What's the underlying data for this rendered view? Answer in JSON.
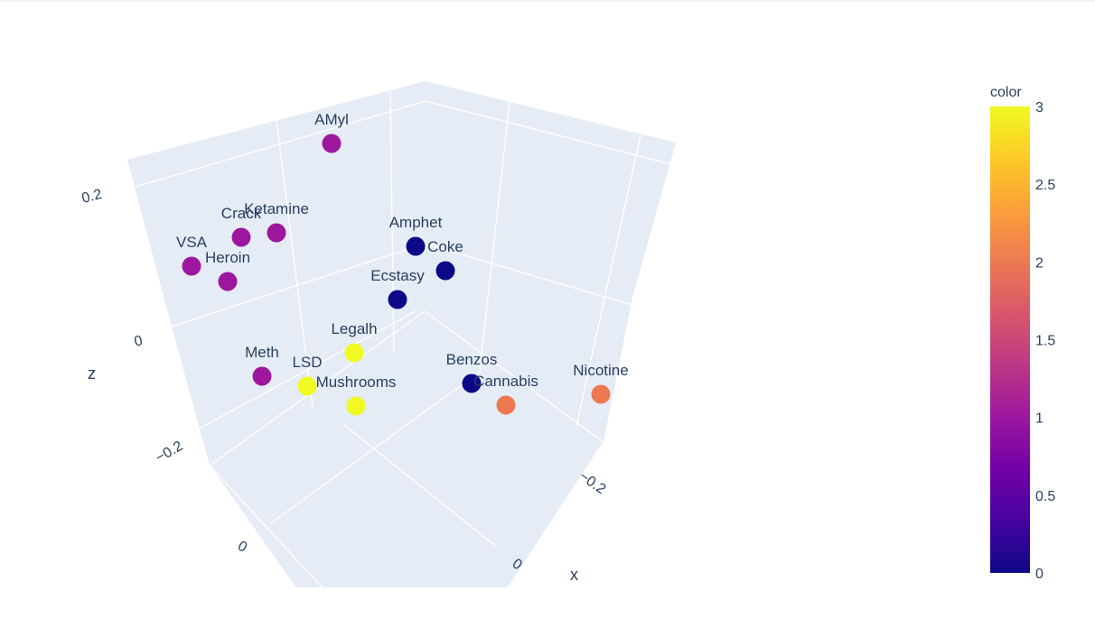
{
  "chart_data": {
    "type": "scatter3d",
    "points": [
      {
        "label": "AMyl",
        "color_value": 1
      },
      {
        "label": "Crack",
        "color_value": 1
      },
      {
        "label": "Ketamine",
        "color_value": 1
      },
      {
        "label": "VSA",
        "color_value": 1
      },
      {
        "label": "Heroin",
        "color_value": 1
      },
      {
        "label": "Amphet",
        "color_value": 0
      },
      {
        "label": "Coke",
        "color_value": 0
      },
      {
        "label": "Ecstasy",
        "color_value": 0
      },
      {
        "label": "Legalh",
        "color_value": 3
      },
      {
        "label": "Meth",
        "color_value": 1
      },
      {
        "label": "LSD",
        "color_value": 3
      },
      {
        "label": "Mushrooms",
        "color_value": 3
      },
      {
        "label": "Benzos",
        "color_value": 0
      },
      {
        "label": "Cannabis",
        "color_value": 2
      },
      {
        "label": "Nicotine",
        "color_value": 2
      }
    ],
    "axes": {
      "x": {
        "title": "x",
        "ticks": [
          "−0.2",
          "0"
        ]
      },
      "y": {
        "title": "",
        "ticks": [
          "0"
        ]
      },
      "z": {
        "title": "z",
        "ticks": [
          "0.2",
          "0",
          "−0.2"
        ]
      }
    },
    "colorbar": {
      "title": "color",
      "range": [
        0,
        3
      ],
      "ticks": [
        "3",
        "2.5",
        "2",
        "1.5",
        "1",
        "0.5",
        "0"
      ],
      "colorscale": [
        "#0d0887",
        "#46039f",
        "#7201a8",
        "#9c179e",
        "#bd3786",
        "#d8576b",
        "#ed7953",
        "#fb9f3a",
        "#fdca26",
        "#f0f921"
      ]
    },
    "scene_background": "#e5ecf6",
    "grid": true
  }
}
